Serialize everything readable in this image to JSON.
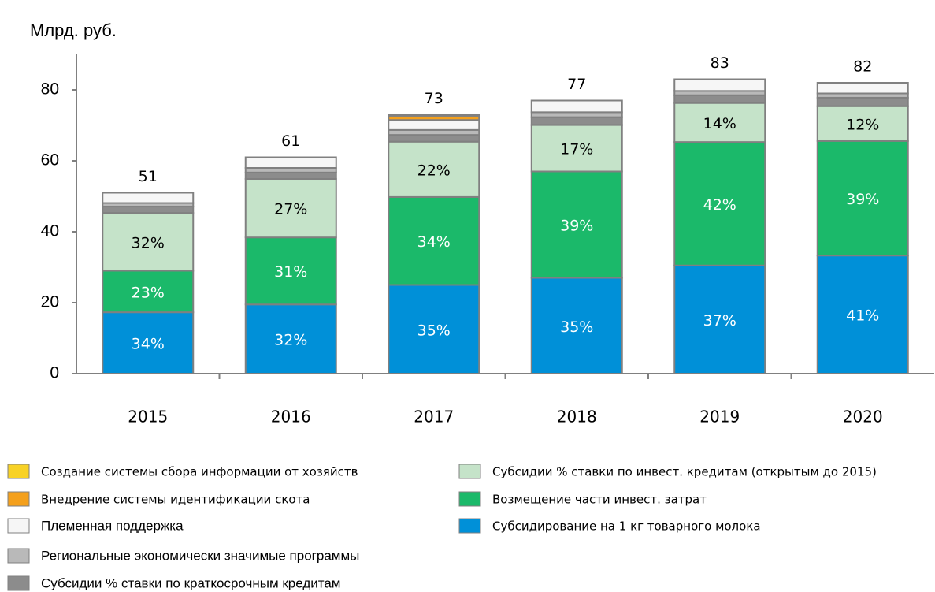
{
  "chart_data": {
    "type": "stacked_bar",
    "title": "Млрд. руб.",
    "categories": [
      "2015",
      "2016",
      "2017",
      "2018",
      "2019",
      "2020"
    ],
    "totals": [
      51,
      61,
      73,
      77,
      83,
      82
    ],
    "ylim": [
      0,
      80
    ],
    "yticks": [
      0,
      20,
      40,
      60,
      80
    ],
    "series": [
      {
        "name": "Субсидирование на 1 кг товарного молока",
        "color": "#0090d8",
        "values": [
          17.3,
          19.5,
          25.0,
          27.0,
          30.5,
          33.3
        ],
        "share_labels": [
          "34%",
          "32%",
          "35%",
          "35%",
          "37%",
          "41%"
        ]
      },
      {
        "name": "Возмещение части инвест. затрат",
        "color": "#1bb96a",
        "values": [
          11.7,
          18.9,
          24.8,
          30.0,
          34.8,
          32.3
        ],
        "share_labels": [
          "23%",
          "31%",
          "34%",
          "39%",
          "42%",
          "39%"
        ]
      },
      {
        "name": "Субсидии % ставки по инвест. кредитам (открытым до 2015)",
        "color": "#c5e3c9",
        "values": [
          16.3,
          16.5,
          15.6,
          13.1,
          11.0,
          9.8
        ],
        "share_labels": [
          "32%",
          "27%",
          "22%",
          "17%",
          "14%",
          "12%"
        ]
      },
      {
        "name": "Субсидии % ставки по краткосрочным кредитам",
        "color": "#8c8c8c",
        "values": [
          1.8,
          1.8,
          1.9,
          2.2,
          2.2,
          2.4
        ]
      },
      {
        "name": "Региональные экономически значимые программы",
        "color": "#b9b9b9",
        "values": [
          1.0,
          1.3,
          1.4,
          1.4,
          1.2,
          1.2
        ]
      },
      {
        "name": "Племенная поддержка",
        "color": "#f6f6f6",
        "values": [
          2.9,
          3.0,
          2.8,
          3.3,
          3.3,
          3.0
        ]
      },
      {
        "name": "Внедрение системы идентификации скота",
        "color": "#f4a01c",
        "values": [
          0,
          0,
          1.2,
          0,
          0,
          0
        ]
      },
      {
        "name": "Создание системы сбора информации от хозяйств",
        "color": "#f8d226",
        "values": [
          0,
          0,
          0.3,
          0,
          0,
          0
        ]
      }
    ]
  }
}
